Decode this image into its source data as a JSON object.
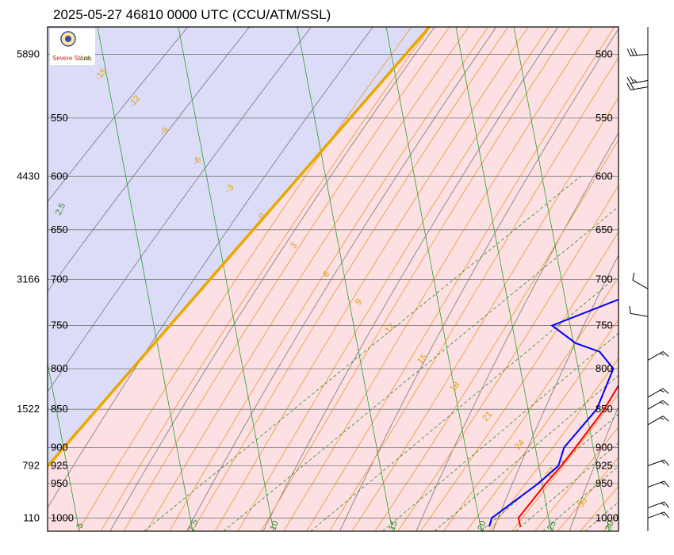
{
  "title": "2025-05-27 46810 0000 UTC (CCU/ATM/SSL)",
  "logo": {
    "name_main": "Severe Storm",
    "name_suffix": "Lab."
  },
  "colors": {
    "plot_bg": "#fde0e3",
    "unstable_bg": "#dcdcf8",
    "temperature": "#ff0000",
    "dewpoint": "#0000ff",
    "parcel_path": "#e8a800",
    "isotherm": "#2aa02a",
    "moist_adiabat": "#e8a040",
    "mixing_ratio": "#2a8a2a",
    "dry_adiabat": "#777777",
    "isobar": "#777777"
  },
  "chart_data": {
    "type": "line",
    "diagram": "skew-T log-P",
    "pressure_levels": [
      500,
      550,
      600,
      650,
      700,
      750,
      800,
      850,
      900,
      925,
      950,
      1000
    ],
    "height_labels": [
      {
        "p": 500,
        "label": "5890"
      },
      {
        "p": 600,
        "label": "4430"
      },
      {
        "p": 700,
        "label": "3166"
      },
      {
        "p": 850,
        "label": "1522"
      },
      {
        "p": 925,
        "label": "792"
      },
      {
        "p": 1000,
        "label": "110"
      }
    ],
    "isotherm_labels": [
      "5",
      "7.5",
      "10",
      "15",
      "20",
      "25",
      "30"
    ],
    "moist_adiabat_labels": [
      "-15",
      "-12",
      "-9",
      "-6",
      "-3",
      "0",
      "3",
      "6",
      "9",
      "12",
      "15",
      "18",
      "21",
      "24",
      "27",
      "30"
    ],
    "mixing_ratio_label": "2.5",
    "series": [
      {
        "name": "",
        "kind": "temperature",
        "points": [
          [
            1013,
            21.3
          ],
          [
            1000,
            19.5
          ],
          [
            950,
            17.0
          ],
          [
            925,
            15.9
          ],
          [
            900,
            14.5
          ],
          [
            850,
            11.5
          ],
          [
            800,
            7.5
          ],
          [
            785,
            8.4
          ],
          [
            760,
            8.2
          ],
          [
            700,
            2.2
          ],
          [
            650,
            -2.0
          ],
          [
            620,
            -2.2
          ],
          [
            600,
            -4.0
          ],
          [
            590,
            -5.9
          ],
          [
            570,
            -7.8
          ],
          [
            560,
            -8.4
          ],
          [
            550,
            -10.5
          ],
          [
            520,
            -12.9
          ],
          [
            500,
            -15.8
          ]
        ]
      },
      {
        "name": "",
        "kind": "dewpoint",
        "points": [
          [
            1013,
            17.2
          ],
          [
            1000,
            16.0
          ],
          [
            950,
            16.0
          ],
          [
            925,
            15.5
          ],
          [
            900,
            13.0
          ],
          [
            850,
            10.5
          ],
          [
            800,
            5.5
          ],
          [
            780,
            0.7
          ],
          [
            770,
            -4.0
          ],
          [
            750,
            -10.2
          ],
          [
            700,
            -2.9
          ],
          [
            650,
            -7.5
          ],
          [
            610,
            -25.6
          ],
          [
            604,
            -27.0
          ],
          [
            590,
            -15.0
          ],
          [
            565,
            -10.0
          ],
          [
            562,
            -23.0
          ],
          [
            546,
            -12.5
          ],
          [
            530,
            -38.0
          ],
          [
            505,
            -15.3
          ],
          [
            500,
            -16.0
          ]
        ]
      }
    ],
    "wind_barbs": [
      {
        "p": 500,
        "speed_kt": 30,
        "dir_deg": 265
      },
      {
        "p": 520,
        "speed_kt": 25,
        "dir_deg": 260
      },
      {
        "p": 525,
        "speed_kt": 20,
        "dir_deg": 260
      },
      {
        "p": 710,
        "speed_kt": 10,
        "dir_deg": 300
      },
      {
        "p": 740,
        "speed_kt": 10,
        "dir_deg": 280
      },
      {
        "p": 790,
        "speed_kt": 15,
        "dir_deg": 60
      },
      {
        "p": 835,
        "speed_kt": 15,
        "dir_deg": 60
      },
      {
        "p": 850,
        "speed_kt": 15,
        "dir_deg": 60
      },
      {
        "p": 870,
        "speed_kt": 15,
        "dir_deg": 60
      },
      {
        "p": 925,
        "speed_kt": 15,
        "dir_deg": 70
      },
      {
        "p": 955,
        "speed_kt": 15,
        "dir_deg": 70
      },
      {
        "p": 985,
        "speed_kt": 15,
        "dir_deg": 70
      },
      {
        "p": 1000,
        "speed_kt": 15,
        "dir_deg": 70
      }
    ],
    "xlim": [
      -40,
      35
    ],
    "ylim": [
      1020,
      480
    ],
    "grid": true
  }
}
